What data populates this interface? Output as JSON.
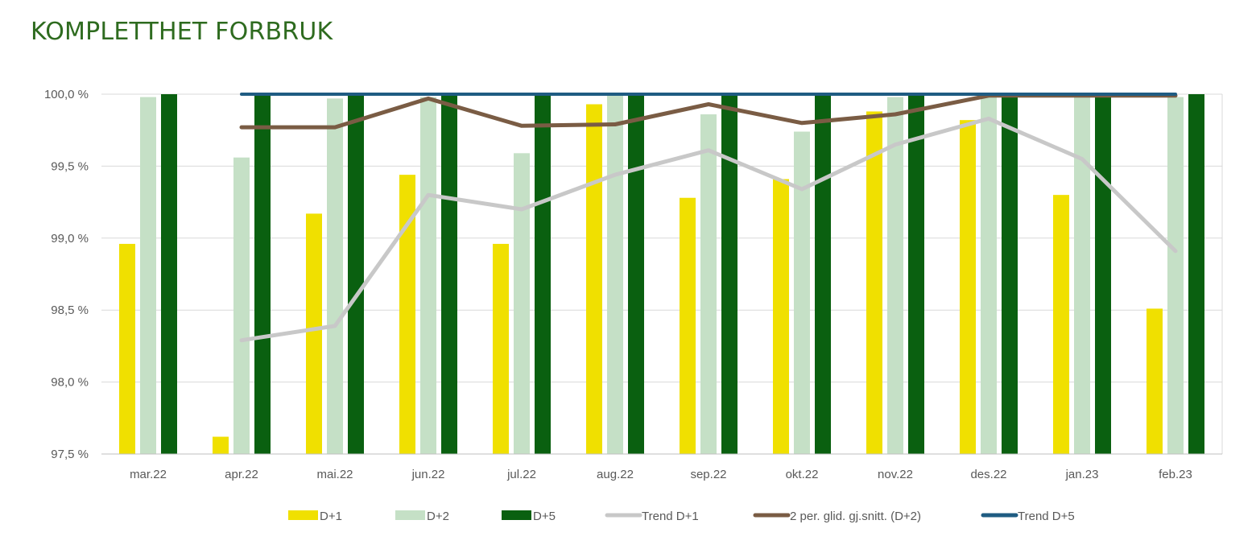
{
  "title": "KOMPLETTHET FORBRUK",
  "chart_data": {
    "type": "bar",
    "categories": [
      "mar.22",
      "apr.22",
      "mai.22",
      "jun.22",
      "jul.22",
      "aug.22",
      "sep.22",
      "okt.22",
      "nov.22",
      "des.22",
      "jan.23",
      "feb.23"
    ],
    "ylim": [
      97.5,
      100.0
    ],
    "yticks": [
      "97,5 %",
      "98,0 %",
      "98,5 %",
      "99,0 %",
      "99,5 %",
      "100,0 %"
    ],
    "ytick_values": [
      97.5,
      98.0,
      98.5,
      99.0,
      99.5,
      100.0
    ],
    "grid": true,
    "legend_position": "bottom",
    "bar_series": [
      {
        "name": "D+1",
        "color": "#f0e000",
        "values": [
          98.96,
          97.62,
          99.17,
          99.44,
          98.96,
          99.93,
          99.28,
          99.41,
          99.88,
          99.82,
          99.3,
          98.51
        ]
      },
      {
        "name": "D+2",
        "color": "#c5e0c6",
        "values": [
          99.98,
          99.56,
          99.97,
          99.98,
          99.59,
          99.99,
          99.86,
          99.74,
          99.98,
          99.99,
          99.99,
          99.98
        ]
      },
      {
        "name": "D+5",
        "color": "#0a6010",
        "values": [
          100.0,
          100.0,
          100.0,
          100.0,
          100.0,
          100.0,
          100.0,
          100.0,
          100.0,
          100.0,
          100.0,
          100.0
        ]
      }
    ],
    "line_series": [
      {
        "name": "Trend D+1",
        "color": "#c8c8c8",
        "values": [
          null,
          98.29,
          98.39,
          99.3,
          99.2,
          99.44,
          99.61,
          99.34,
          99.65,
          99.83,
          99.55,
          98.91
        ]
      },
      {
        "name": "2 per. glid. gj.snitt. (D+2)",
        "color": "#7a5c44",
        "values": [
          null,
          99.77,
          99.77,
          99.97,
          99.78,
          99.79,
          99.93,
          99.8,
          99.86,
          99.99,
          99.99,
          99.99
        ]
      },
      {
        "name": "Trend D+5",
        "color": "#1f5c82",
        "values": [
          null,
          100.0,
          100.0,
          100.0,
          100.0,
          100.0,
          100.0,
          100.0,
          100.0,
          100.0,
          100.0,
          100.0
        ]
      }
    ],
    "legend": [
      {
        "label": "D+1",
        "kind": "bar",
        "color": "#f0e000"
      },
      {
        "label": "D+2",
        "kind": "bar",
        "color": "#c5e0c6"
      },
      {
        "label": "D+5",
        "kind": "bar",
        "color": "#0a6010"
      },
      {
        "label": "Trend D+1",
        "kind": "line",
        "color": "#c8c8c8"
      },
      {
        "label": "2 per. glid. gj.snitt. (D+2)",
        "kind": "line",
        "color": "#7a5c44"
      },
      {
        "label": "Trend D+5",
        "kind": "line",
        "color": "#1f5c82"
      }
    ]
  }
}
